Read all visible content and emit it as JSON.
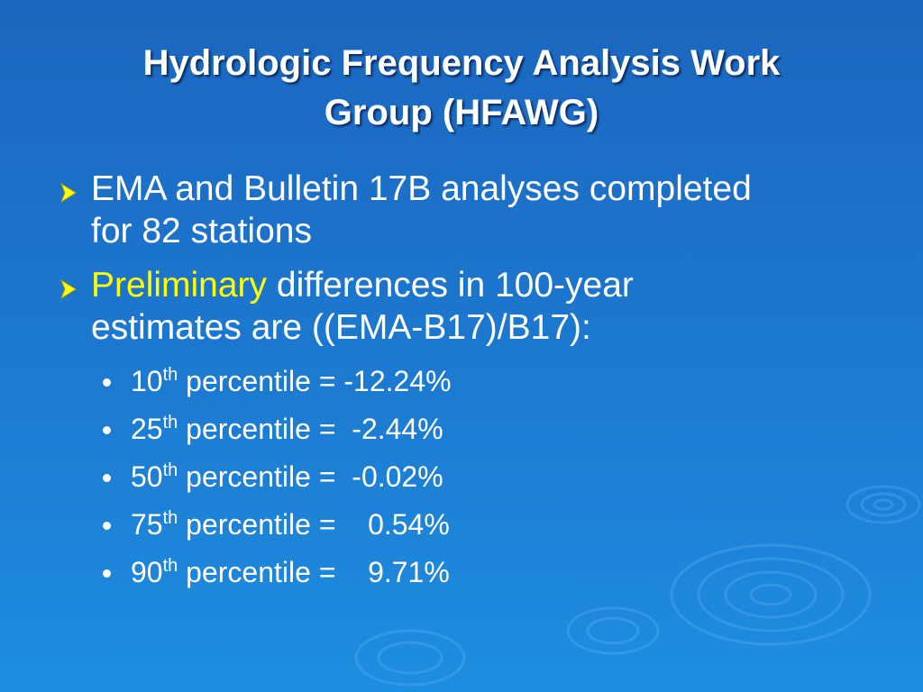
{
  "slide": {
    "title": [
      "Hydrologic Frequency Analysis Work",
      "Group (HFAWG)"
    ],
    "bullets": [
      {
        "lines": [
          "EMA and Bulletin 17B analyses completed",
          "for 82 stations"
        ]
      },
      {
        "highlight": "Preliminary",
        "lines": [
          "differences in 100-year",
          "estimates are ((EMA-B17)/B17):"
        ],
        "sub_bullets": [
          {
            "number": "10",
            "suffix": "th",
            "text": "percentile = -12.24%"
          },
          {
            "number": "25",
            "suffix": "th",
            "text": "percentile =  -2.44%"
          },
          {
            "number": "50",
            "suffix": "th",
            "text": "percentile =  -0.02%"
          },
          {
            "number": "75",
            "suffix": "th",
            "text": "percentile =    0.54%"
          },
          {
            "number": "90",
            "suffix": "th",
            "text": "percentile =    9.71%"
          }
        ]
      }
    ]
  }
}
